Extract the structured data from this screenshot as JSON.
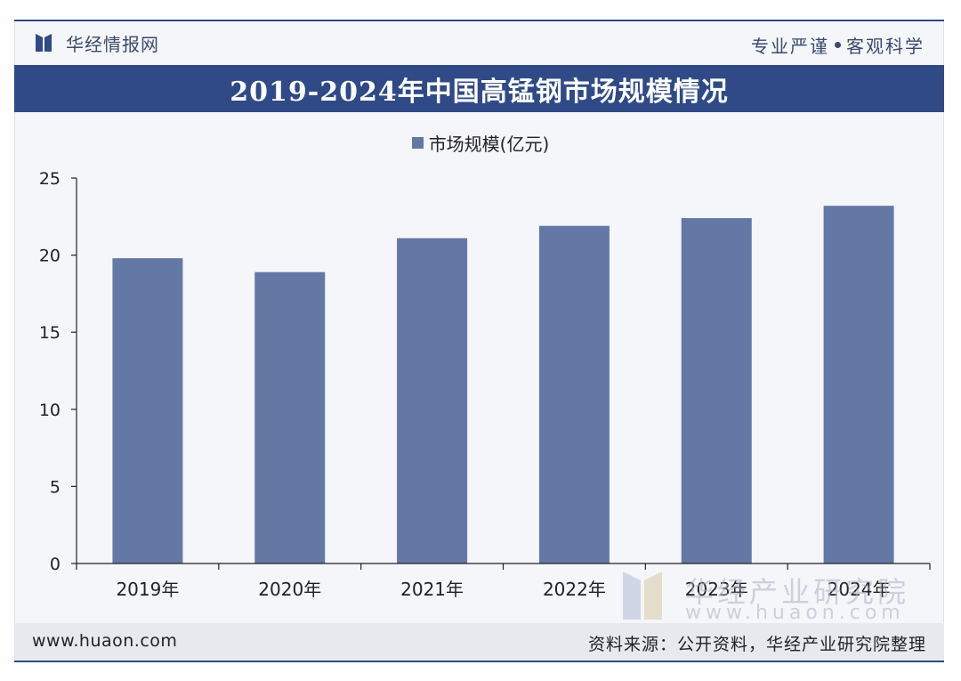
{
  "header": {
    "brand": "华经情报网",
    "slogan_left": "专业严谨",
    "slogan_right": "客观科学",
    "logo_icon": "huajing-logo-icon"
  },
  "chart_data": {
    "type": "bar",
    "title": "2019-2024年中国高锰钢市场规模情况",
    "categories": [
      "2019年",
      "2020年",
      "2021年",
      "2022年",
      "2023年",
      "2024年"
    ],
    "series": [
      {
        "name": "市场规模(亿元)",
        "values": [
          19.8,
          18.9,
          21.1,
          21.9,
          22.4,
          23.2
        ],
        "color": "#6478a6"
      }
    ],
    "ylim": [
      0,
      25
    ],
    "yticks": [
      0,
      5,
      10,
      15,
      20,
      25
    ],
    "legend": "top-center",
    "grid": false
  },
  "footer": {
    "url": "www.huaon.com",
    "source": "资料来源：公开资料，华经产业研究院整理"
  },
  "watermark": {
    "name": "华经产业研究院",
    "url": "www.huaon.com"
  },
  "colors": {
    "accent": "#2f4a86",
    "bar": "#6478a6",
    "footer_bg": "#e7e9ef"
  }
}
